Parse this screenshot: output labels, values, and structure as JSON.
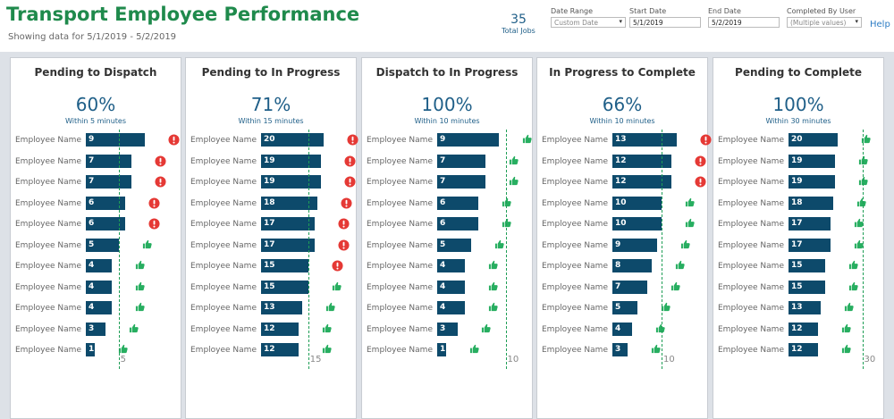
{
  "header": {
    "title": "Transport Employee Performance",
    "subtitle": "Showing data for 5/1/2019 - 5/2/2019"
  },
  "kpi": {
    "value": "35",
    "label": "Total Jobs"
  },
  "filters": {
    "date_range": {
      "label": "Date Range",
      "value": "Custom Date"
    },
    "start_date": {
      "label": "Start Date",
      "value": "5/1/2019"
    },
    "end_date": {
      "label": "End Date",
      "value": "5/2/2019"
    },
    "completed_by": {
      "label": "Completed By User",
      "value": "(Multiple values)"
    }
  },
  "help": "Help",
  "colors": {
    "title": "#1f8a4c",
    "bar": "#0d4a6b",
    "good": "#27ae60",
    "bad": "#e53935",
    "accent": "#1f5f88"
  },
  "panels": [
    {
      "title": "Pending to Dispatch",
      "percent": "60%",
      "subtitle": "Within 5 minutes",
      "target": "5",
      "target_value": 5,
      "max": 12,
      "rows": [
        {
          "name": "Employee Name",
          "value": 9,
          "status": "bad"
        },
        {
          "name": "Employee Name",
          "value": 7,
          "status": "bad"
        },
        {
          "name": "Employee Name",
          "value": 7,
          "status": "bad"
        },
        {
          "name": "Employee Name",
          "value": 6,
          "status": "bad"
        },
        {
          "name": "Employee Name",
          "value": 6,
          "status": "bad"
        },
        {
          "name": "Employee Name",
          "value": 5,
          "status": "good"
        },
        {
          "name": "Employee Name",
          "value": 4,
          "status": "good"
        },
        {
          "name": "Employee Name",
          "value": 4,
          "status": "good"
        },
        {
          "name": "Employee Name",
          "value": 4,
          "status": "good"
        },
        {
          "name": "Employee Name",
          "value": 3,
          "status": "good"
        },
        {
          "name": "Employee Name",
          "value": 1,
          "status": "good"
        }
      ]
    },
    {
      "title": "Pending to In Progress",
      "percent": "71%",
      "subtitle": "Within 15 minutes",
      "target": "15",
      "target_value": 15,
      "max": 25,
      "rows": [
        {
          "name": "Employee Name",
          "value": 20,
          "status": "bad"
        },
        {
          "name": "Employee Name",
          "value": 19,
          "status": "bad"
        },
        {
          "name": "Employee Name",
          "value": 19,
          "status": "bad"
        },
        {
          "name": "Employee Name",
          "value": 18,
          "status": "bad"
        },
        {
          "name": "Employee Name",
          "value": 17,
          "status": "bad"
        },
        {
          "name": "Employee Name",
          "value": 17,
          "status": "bad"
        },
        {
          "name": "Employee Name",
          "value": 15,
          "status": "bad"
        },
        {
          "name": "Employee Name",
          "value": 15,
          "status": "good"
        },
        {
          "name": "Employee Name",
          "value": 13,
          "status": "good"
        },
        {
          "name": "Employee Name",
          "value": 12,
          "status": "good"
        },
        {
          "name": "Employee Name",
          "value": 12,
          "status": "good"
        }
      ]
    },
    {
      "title": "Dispatch to In Progress",
      "percent": "100%",
      "subtitle": "Within 10 minutes",
      "target": "10",
      "target_value": 10,
      "max": 11.5,
      "rows": [
        {
          "name": "Employee Name",
          "value": 9,
          "status": "good"
        },
        {
          "name": "Employee Name",
          "value": 7,
          "status": "good"
        },
        {
          "name": "Employee Name",
          "value": 7,
          "status": "good"
        },
        {
          "name": "Employee Name",
          "value": 6,
          "status": "good"
        },
        {
          "name": "Employee Name",
          "value": 6,
          "status": "good"
        },
        {
          "name": "Employee Name",
          "value": 5,
          "status": "good"
        },
        {
          "name": "Employee Name",
          "value": 4,
          "status": "good"
        },
        {
          "name": "Employee Name",
          "value": 4,
          "status": "good"
        },
        {
          "name": "Employee Name",
          "value": 4,
          "status": "good"
        },
        {
          "name": "Employee Name",
          "value": 3,
          "status": "good"
        },
        {
          "name": "Employee Name",
          "value": 1,
          "status": "good"
        }
      ]
    },
    {
      "title": "In Progress to Complete",
      "percent": "66%",
      "subtitle": "Within 10 minutes",
      "target": "10",
      "target_value": 10,
      "max": 16,
      "rows": [
        {
          "name": "Employee Name",
          "value": 13,
          "status": "bad"
        },
        {
          "name": "Employee Name",
          "value": 12,
          "status": "bad"
        },
        {
          "name": "Employee Name",
          "value": 12,
          "status": "bad"
        },
        {
          "name": "Employee Name",
          "value": 10,
          "status": "good"
        },
        {
          "name": "Employee Name",
          "value": 10,
          "status": "good"
        },
        {
          "name": "Employee Name",
          "value": 9,
          "status": "good"
        },
        {
          "name": "Employee Name",
          "value": 8,
          "status": "good"
        },
        {
          "name": "Employee Name",
          "value": 7,
          "status": "good"
        },
        {
          "name": "Employee Name",
          "value": 5,
          "status": "good"
        },
        {
          "name": "Employee Name",
          "value": 4,
          "status": "good"
        },
        {
          "name": "Employee Name",
          "value": 3,
          "status": "good"
        }
      ]
    },
    {
      "title": "Pending to Complete",
      "percent": "100%",
      "subtitle": "Within 30 minutes",
      "target": "30",
      "target_value": 30,
      "max": 32,
      "rows": [
        {
          "name": "Employee Name",
          "value": 20,
          "status": "good"
        },
        {
          "name": "Employee Name",
          "value": 19,
          "status": "good"
        },
        {
          "name": "Employee Name",
          "value": 19,
          "status": "good"
        },
        {
          "name": "Employee Name",
          "value": 18,
          "status": "good"
        },
        {
          "name": "Employee Name",
          "value": 17,
          "status": "good"
        },
        {
          "name": "Employee Name",
          "value": 17,
          "status": "good"
        },
        {
          "name": "Employee Name",
          "value": 15,
          "status": "good"
        },
        {
          "name": "Employee Name",
          "value": 15,
          "status": "good"
        },
        {
          "name": "Employee Name",
          "value": 13,
          "status": "good"
        },
        {
          "name": "Employee Name",
          "value": 12,
          "status": "good"
        },
        {
          "name": "Employee Name",
          "value": 12,
          "status": "good"
        }
      ]
    }
  ]
}
